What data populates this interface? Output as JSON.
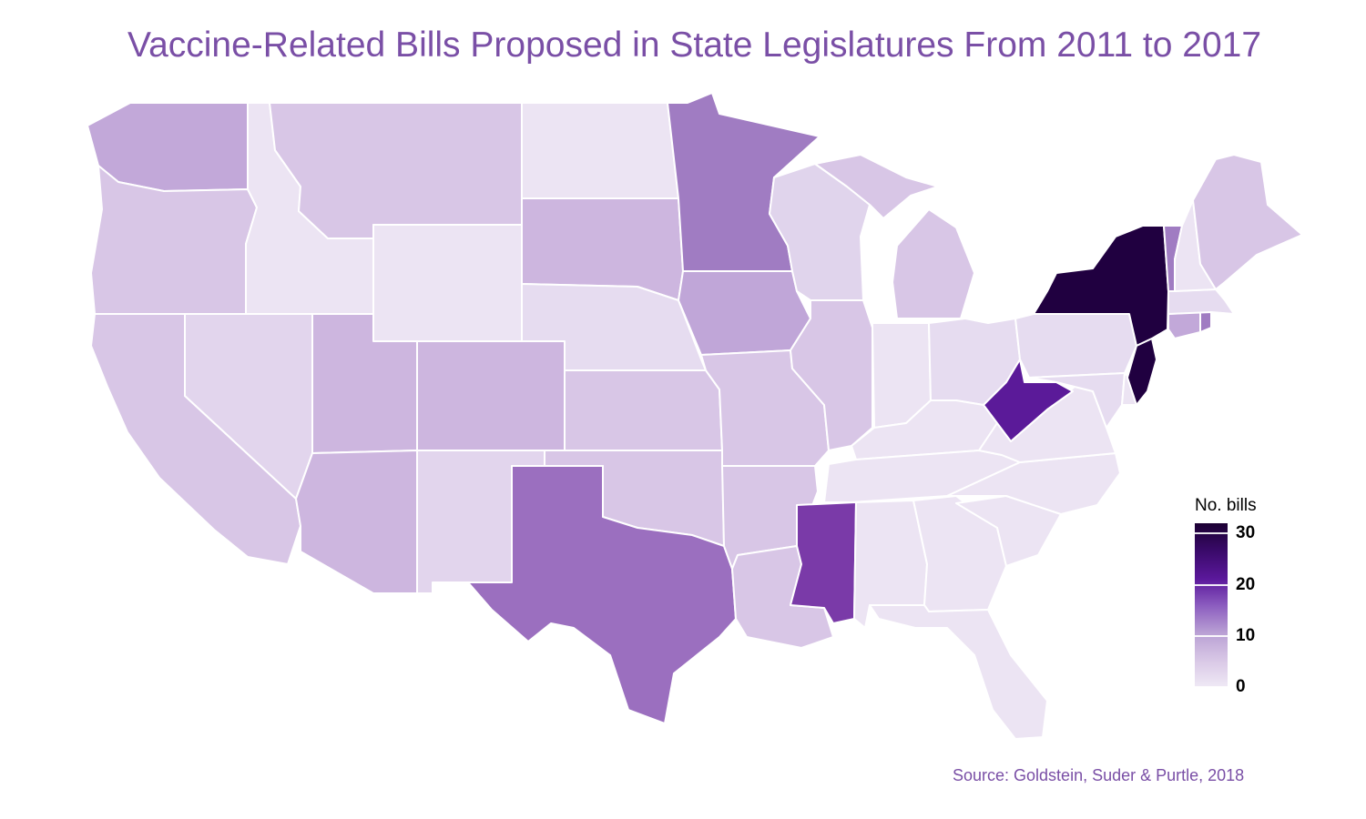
{
  "title": "Vaccine-Related Bills Proposed in State Legislatures From 2011 to 2017",
  "source": "Source: Goldstein, Suder & Purtle, 2018",
  "legend": {
    "title": "No. bills",
    "ticks": [
      "30",
      "20",
      "10",
      "0"
    ],
    "tick_values": [
      30,
      20,
      10,
      0
    ],
    "min": 0,
    "max": 32,
    "gradient_colors": [
      "#efe9f5",
      "#d9c8e6",
      "#b9a0d4",
      "#8b5cbf",
      "#5b189b",
      "#3a0a6a",
      "#1c0033"
    ]
  },
  "states": {
    "WA": {
      "bills": 7,
      "color": "#c2a8d9"
    },
    "OR": {
      "bills": 4,
      "color": "#d8c6e6"
    },
    "CA": {
      "bills": 4,
      "color": "#d8c6e6"
    },
    "ID": {
      "bills": 1,
      "color": "#ece4f3"
    },
    "NV": {
      "bills": 3,
      "color": "#e2d5ed"
    },
    "MT": {
      "bills": 4,
      "color": "#d8c6e6"
    },
    "WY": {
      "bills": 1,
      "color": "#ece4f3"
    },
    "UT": {
      "bills": 5,
      "color": "#cdb6df"
    },
    "AZ": {
      "bills": 5,
      "color": "#cdb6df"
    },
    "CO": {
      "bills": 5,
      "color": "#cdb6df"
    },
    "NM": {
      "bills": 3,
      "color": "#e2d5ed"
    },
    "ND": {
      "bills": 1,
      "color": "#ece4f3"
    },
    "SD": {
      "bills": 5,
      "color": "#cdb6df"
    },
    "NE": {
      "bills": 2,
      "color": "#e6dcf0"
    },
    "KS": {
      "bills": 4,
      "color": "#d8c6e6"
    },
    "OK": {
      "bills": 4,
      "color": "#d8c6e6"
    },
    "TX": {
      "bills": 11,
      "color": "#9b6fbf"
    },
    "MN": {
      "bills": 11,
      "color": "#a07cc2"
    },
    "IA": {
      "bills": 7,
      "color": "#c0a6d8"
    },
    "MO": {
      "bills": 4,
      "color": "#d8c6e6"
    },
    "AR": {
      "bills": 4,
      "color": "#d8c6e6"
    },
    "LA": {
      "bills": 4,
      "color": "#d8c6e6"
    },
    "WI": {
      "bills": 3,
      "color": "#e0d4ec"
    },
    "IL": {
      "bills": 4,
      "color": "#d8c6e6"
    },
    "MI": {
      "bills": 4,
      "color": "#d8c6e6"
    },
    "IN": {
      "bills": 1,
      "color": "#ece4f3"
    },
    "OH": {
      "bills": 2,
      "color": "#e6dcf0"
    },
    "KY": {
      "bills": 1,
      "color": "#ece4f3"
    },
    "TN": {
      "bills": 1,
      "color": "#ece4f3"
    },
    "MS": {
      "bills": 17,
      "color": "#7a3aa8"
    },
    "AL": {
      "bills": 1,
      "color": "#ece4f3"
    },
    "GA": {
      "bills": 1,
      "color": "#ece4f3"
    },
    "FL": {
      "bills": 1,
      "color": "#ece4f3"
    },
    "SC": {
      "bills": 1,
      "color": "#ece4f3"
    },
    "NC": {
      "bills": 1,
      "color": "#ece4f3"
    },
    "VA": {
      "bills": 1,
      "color": "#ece4f3"
    },
    "WV": {
      "bills": 22,
      "color": "#5b1a99"
    },
    "PA": {
      "bills": 2,
      "color": "#e6dcf0"
    },
    "NY": {
      "bills": 32,
      "color": "#200040"
    },
    "NJ": {
      "bills": 32,
      "color": "#200040"
    },
    "MD": {
      "bills": 2,
      "color": "#e6dcf0"
    },
    "DE": {
      "bills": 1,
      "color": "#ece4f3"
    },
    "CT": {
      "bills": 7,
      "color": "#c2a8d9"
    },
    "RI": {
      "bills": 11,
      "color": "#a07cc2"
    },
    "MA": {
      "bills": 2,
      "color": "#e6dcf0"
    },
    "VT": {
      "bills": 11,
      "color": "#a07cc2"
    },
    "NH": {
      "bills": 1,
      "color": "#ece4f3"
    },
    "ME": {
      "bills": 4,
      "color": "#d8c6e6"
    }
  }
}
